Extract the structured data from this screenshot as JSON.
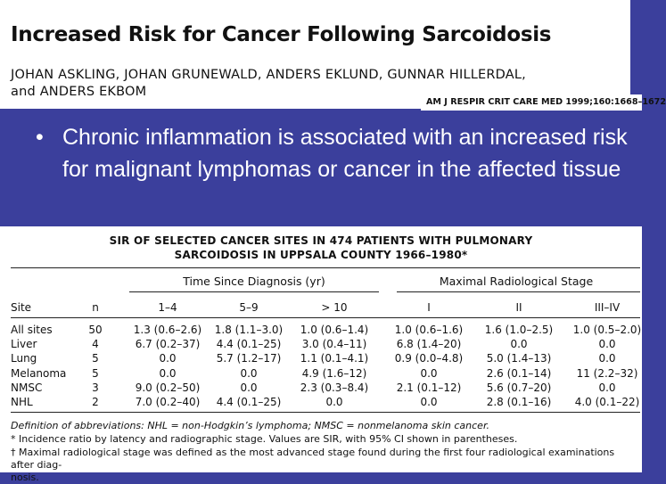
{
  "header": {
    "title": "Increased Risk for Cancer Following Sarcoidosis",
    "authors_line1": "JOHAN ASKLING, JOHAN GRUNEWALD, ANDERS EKLUND, GUNNAR HILLERDAL,",
    "authors_line2": "and ANDERS EKBOM",
    "journal": "AM J RESPIR CRIT CARE MED 1999;160:1668–1672"
  },
  "bullet": {
    "symbol": "•",
    "text": "Chronic inflammation is associated with an increased risk for malignant lymphomas or cancer in the affected tissue"
  },
  "table": {
    "caption_line1": "SIR OF SELECTED CANCER SITES IN 474 PATIENTS WITH PULMONARY",
    "caption_line2": "SARCOIDOSIS IN UPPSALA COUNTY 1966–1980*",
    "group_time": "Time Since Diagnosis (yr)",
    "group_stage": "Maximal Radiological Stage",
    "columns": [
      "Site",
      "n",
      "1–4",
      "5–9",
      "> 10",
      "I",
      "II",
      "III–IV"
    ],
    "rows": [
      [
        "All sites",
        "50",
        "1.3 (0.6–2.6)",
        "1.8 (1.1–3.0)",
        "1.0 (0.6–1.4)",
        "1.0 (0.6–1.6)",
        "1.6 (1.0–2.5)",
        "1.0 (0.5–2.0)"
      ],
      [
        "Liver",
        "4",
        "6.7 (0.2–37)",
        "4.4 (0.1–25)",
        "3.0 (0.4–11)",
        "6.8 (1.4–20)",
        "0.0",
        "0.0"
      ],
      [
        "Lung",
        "5",
        "0.0",
        "5.7 (1.2–17)",
        "1.1 (0.1–4.1)",
        "0.9 (0.0–4.8)",
        "5.0 (1.4–13)",
        "0.0"
      ],
      [
        "Melanoma",
        "5",
        "0.0",
        "0.0",
        "4.9 (1.6–12)",
        "0.0",
        "2.6 (0.1–14)",
        "11 (2.2–32)"
      ],
      [
        "NMSC",
        "3",
        "9.0 (0.2–50)",
        "0.0",
        "2.3 (0.3–8.4)",
        "2.1 (0.1–12)",
        "5.6 (0.7–20)",
        "0.0"
      ],
      [
        "NHL",
        "2",
        "7.0 (0.2–40)",
        "4.4 (0.1–25)",
        "0.0",
        "0.0",
        "2.8 (0.1–16)",
        "4.0 (0.1–22)"
      ]
    ],
    "footnote_def": "Definition of abbreviations: NHL = non-Hodgkin’s lymphoma; NMSC = nonmelanoma skin cancer.",
    "footnote_star": "* Incidence ratio by latency and radiographic stage. Values are SIR, with 95% CI shown in parentheses.",
    "footnote_dagger_line1": "† Maximal radiological stage was defined as the most advanced stage found during the first four radiological examinations after diag-",
    "footnote_dagger_line2": "nosis."
  }
}
